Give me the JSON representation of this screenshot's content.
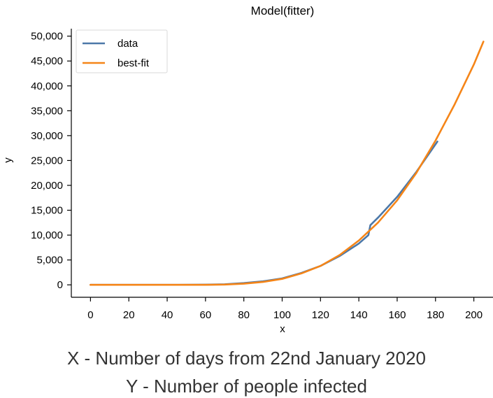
{
  "chart_data": {
    "type": "line",
    "title": "Model(fitter)",
    "xlabel": "x",
    "ylabel": "y",
    "xlim": [
      -10,
      210
    ],
    "ylim": [
      -2500,
      51500
    ],
    "x_ticks": [
      0,
      20,
      40,
      60,
      80,
      100,
      120,
      140,
      160,
      180,
      200
    ],
    "y_ticks": [
      0,
      5000,
      10000,
      15000,
      20000,
      25000,
      30000,
      35000,
      40000,
      45000,
      50000
    ],
    "grid": false,
    "legend_position": "top-left",
    "series": [
      {
        "name": "data",
        "color": "#4c78a8",
        "x": [
          0,
          20,
          40,
          60,
          70,
          80,
          90,
          100,
          110,
          120,
          130,
          140,
          145,
          146,
          150,
          160,
          170,
          181
        ],
        "y": [
          0,
          0,
          10,
          50,
          120,
          350,
          700,
          1300,
          2400,
          3800,
          5800,
          8300,
          10000,
          12000,
          13500,
          17700,
          22700,
          28800
        ]
      },
      {
        "name": "best-fit",
        "color": "#f58518",
        "x": [
          0,
          20,
          40,
          60,
          70,
          80,
          90,
          100,
          110,
          120,
          130,
          140,
          150,
          160,
          170,
          180,
          190,
          200,
          205
        ],
        "y": [
          0,
          0,
          0,
          10,
          60,
          230,
          580,
          1200,
          2300,
          3800,
          6000,
          8900,
          12500,
          17000,
          22500,
          29000,
          36300,
          44300,
          48900
        ]
      }
    ]
  },
  "captions": {
    "line1": "X - Number of days from 22nd January 2020",
    "line2": "Y - Number of people infected"
  }
}
